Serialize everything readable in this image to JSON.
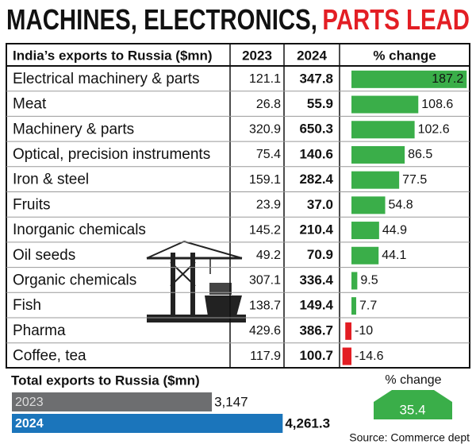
{
  "header": {
    "title": "MACHINES, ELECTRONICS,",
    "title_highlight": "PARTS LEAD"
  },
  "chart_data": [
    {
      "type": "table-bar",
      "title": "India’s exports to Russia ($mn)",
      "categories": [
        "Electrical machinery & parts",
        "Meat",
        "Machinery & parts",
        "Optical, precision instruments",
        "Iron & steel",
        "Fruits",
        "Inorganic chemicals",
        "Oil seeds",
        "Organic chemicals",
        "Fish",
        "Pharma",
        "Coffee, tea"
      ],
      "series": [
        {
          "name": "2023",
          "values": [
            121.1,
            26.8,
            320.9,
            75.4,
            159.1,
            23.9,
            145.2,
            49.2,
            307.1,
            138.7,
            429.6,
            117.9
          ]
        },
        {
          "name": "2024",
          "values": [
            347.8,
            55.9,
            650.3,
            140.6,
            282.4,
            37.0,
            210.4,
            70.9,
            336.4,
            149.4,
            386.7,
            100.7
          ],
          "value_labels": [
            "347.8",
            "55.9",
            "650.3",
            "140.6",
            "282.4",
            "37.0",
            "210.4",
            "70.9",
            "336.4",
            "149.4",
            "386.7",
            "100.7"
          ]
        },
        {
          "name": "% change",
          "values": [
            187.2,
            108.6,
            102.6,
            86.5,
            77.5,
            54.8,
            44.9,
            44.1,
            9.5,
            7.7,
            -10,
            -14.6
          ],
          "color": "#3aae49",
          "negative_color": "#e31e24"
        }
      ]
    },
    {
      "type": "bar",
      "title": "Total exports to Russia ($mn)",
      "categories": [
        "2023",
        "2024"
      ],
      "values": [
        3147,
        4261.3
      ],
      "value_labels": [
        "3,147",
        "4,261.3"
      ],
      "colors": [
        "#6d6e70",
        "#1b75bb"
      ],
      "change_label": "% change",
      "change": 35.4,
      "change_color": "#3aae49"
    }
  ],
  "source": "Source: Commerce dept"
}
